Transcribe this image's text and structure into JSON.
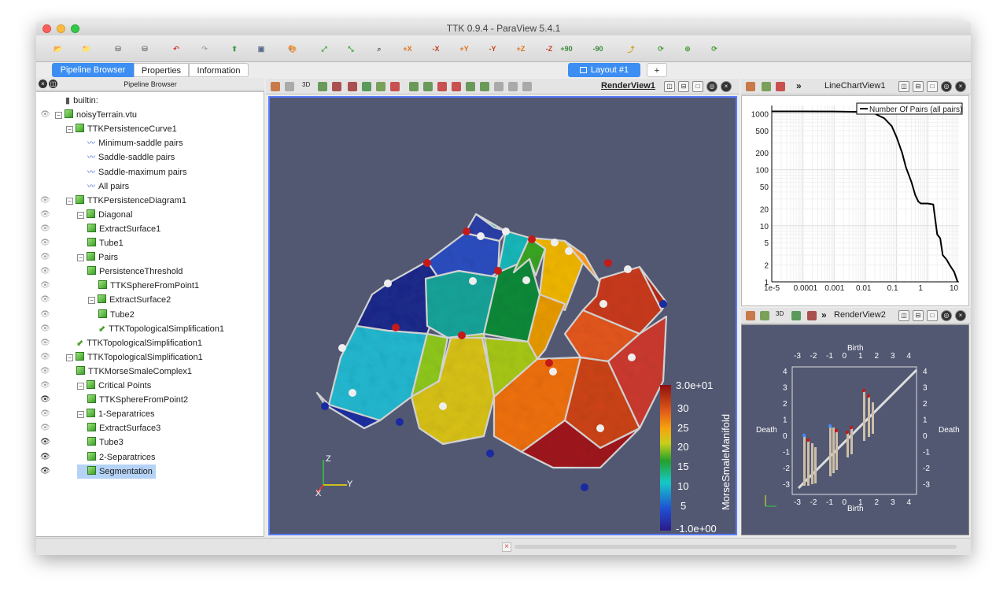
{
  "window": {
    "title": "TTK 0.9.4 - ParaView 5.4.1"
  },
  "toolbar": {
    "buttons": [
      {
        "name": "open-file",
        "label": "📂"
      },
      {
        "name": "load-state",
        "label": "📁"
      },
      {
        "name": "connect",
        "label": "⛁"
      },
      {
        "name": "disconnect",
        "label": "⛁"
      },
      {
        "name": "undo",
        "label": "↶"
      },
      {
        "name": "redo",
        "label": "↷"
      },
      {
        "name": "save-screenshot",
        "label": "⬆"
      },
      {
        "name": "save-animation",
        "label": "▣"
      },
      {
        "name": "color-palette",
        "label": "🎨"
      },
      {
        "name": "reset-camera",
        "label": "⤢"
      },
      {
        "name": "zoom-data",
        "label": "⤡"
      },
      {
        "name": "zoom-box",
        "label": "⌕"
      },
      {
        "name": "view-plus-x",
        "label": "+X"
      },
      {
        "name": "view-minus-x",
        "label": "-X"
      },
      {
        "name": "view-plus-y",
        "label": "+Y"
      },
      {
        "name": "view-minus-y",
        "label": "-Y"
      },
      {
        "name": "view-plus-z",
        "label": "+Z"
      },
      {
        "name": "view-minus-z",
        "label": "-Z"
      },
      {
        "name": "rotate-plus-90",
        "label": "+90"
      },
      {
        "name": "rotate-minus-90",
        "label": "-90"
      },
      {
        "name": "orientation-axes",
        "label": "⤴"
      },
      {
        "name": "center-axes",
        "label": "⟳"
      },
      {
        "name": "pick-center",
        "label": "⊚"
      },
      {
        "name": "reset-center",
        "label": "⟳"
      }
    ]
  },
  "left_tabs": [
    "Pipeline Browser",
    "Properties",
    "Information"
  ],
  "pipeline": {
    "header": "Pipeline Browser",
    "items": [
      {
        "label": "builtin:",
        "depth": 0,
        "eye": false,
        "icon": "server",
        "exp": false
      },
      {
        "label": "noisyTerrain.vtu",
        "depth": 0,
        "eye": true,
        "icon": "cube",
        "exp": true
      },
      {
        "label": "TTKPersistenceCurve1",
        "depth": 1,
        "eye": false,
        "icon": "cube",
        "exp": true
      },
      {
        "label": "Minimum-saddle pairs",
        "depth": 2,
        "eye": false,
        "icon": "chart",
        "exp": false
      },
      {
        "label": "Saddle-saddle pairs",
        "depth": 2,
        "eye": false,
        "icon": "chart",
        "exp": false
      },
      {
        "label": "Saddle-maximum pairs",
        "depth": 2,
        "eye": false,
        "icon": "chart",
        "exp": false
      },
      {
        "label": "All pairs",
        "depth": 2,
        "eye": false,
        "icon": "chart",
        "exp": false
      },
      {
        "label": "TTKPersistenceDiagram1",
        "depth": 1,
        "eye": true,
        "icon": "cube",
        "exp": true
      },
      {
        "label": "Diagonal",
        "depth": 2,
        "eye": true,
        "icon": "cube",
        "exp": true
      },
      {
        "label": "ExtractSurface1",
        "depth": 2,
        "eye": true,
        "icon": "cube",
        "exp": false
      },
      {
        "label": "Tube1",
        "depth": 2,
        "eye": true,
        "icon": "cube",
        "exp": false
      },
      {
        "label": "Pairs",
        "depth": 2,
        "eye": true,
        "icon": "cube",
        "exp": true
      },
      {
        "label": "PersistenceThreshold",
        "depth": 2,
        "eye": true,
        "icon": "cube",
        "exp": false
      },
      {
        "label": "TTKSphereFromPoint1",
        "depth": 3,
        "eye": true,
        "icon": "cube",
        "exp": false
      },
      {
        "label": "ExtractSurface2",
        "depth": 3,
        "eye": true,
        "icon": "cube",
        "exp": true
      },
      {
        "label": "Tube2",
        "depth": 3,
        "eye": true,
        "icon": "cube",
        "exp": false
      },
      {
        "label": "TTKTopologicalSimplification1",
        "depth": 3,
        "eye": true,
        "icon": "arrow",
        "exp": false
      },
      {
        "label": "TTKTopologicalSimplification1",
        "depth": 1,
        "eye": true,
        "icon": "arrow",
        "exp": false
      },
      {
        "label": "TTKTopologicalSimplification1",
        "depth": 1,
        "eye": true,
        "icon": "cube",
        "exp": true
      },
      {
        "label": "TTKMorseSmaleComplex1",
        "depth": 1,
        "eye": true,
        "icon": "cube",
        "exp": false
      },
      {
        "label": "Critical Points",
        "depth": 2,
        "eye": true,
        "icon": "cube",
        "exp": true
      },
      {
        "label": "TTKSphereFromPoint2",
        "depth": 2,
        "eye": true,
        "icon": "cube",
        "exp": false,
        "eyeOn": true
      },
      {
        "label": "1-Separatrices",
        "depth": 2,
        "eye": true,
        "icon": "cube",
        "exp": true
      },
      {
        "label": "ExtractSurface3",
        "depth": 2,
        "eye": true,
        "icon": "cube",
        "exp": false
      },
      {
        "label": "Tube3",
        "depth": 2,
        "eye": true,
        "icon": "cube",
        "exp": false,
        "eyeOn": true
      },
      {
        "label": "2-Separatrices",
        "depth": 2,
        "eye": true,
        "icon": "cube",
        "exp": false,
        "eyeOn": true
      },
      {
        "label": "Segmentation",
        "depth": 2,
        "eye": true,
        "icon": "cube",
        "exp": false,
        "eyeOn": true,
        "selected": true
      }
    ]
  },
  "layout_tab": {
    "label": "Layout #1",
    "add": "+"
  },
  "render_view_1": {
    "title": "RenderView1",
    "three_d_label": "3D",
    "scalar_bar": {
      "title": "MorseSmaleManifold",
      "top": "3.0e+01",
      "ticks": [
        "30",
        "25",
        "20",
        "15",
        "10",
        "5"
      ],
      "bottom": "-1.0e+00"
    },
    "axes": {
      "x": "X",
      "y": "Y",
      "z": "Z"
    }
  },
  "line_chart_view": {
    "title": "LineChartView1",
    "legend": "Number Of Pairs (all pairs)"
  },
  "render_view_2": {
    "title": "RenderView2",
    "three_d_label": "3D",
    "x_label_top": "Birth",
    "x_label_bottom": "Birth",
    "y_label_left": "Death",
    "y_label_right": "Death",
    "x_ticks": [
      "-3",
      "-2",
      "-1",
      "0",
      "1",
      "2",
      "3",
      "4"
    ],
    "y_ticks": [
      "4",
      "3",
      "2",
      "1",
      "0",
      "-1",
      "-2",
      "-3"
    ]
  },
  "chart_data": {
    "type": "line",
    "title": "",
    "xlabel": "",
    "ylabel": "",
    "x_scale": "log",
    "y_scale": "log",
    "xlim": [
      1e-05,
      10
    ],
    "ylim": [
      1,
      1400
    ],
    "x_ticks": [
      "1e-5",
      "0.0001",
      "0.001",
      "0.01",
      "0.1",
      "1",
      "10"
    ],
    "y_ticks": [
      "1000",
      "500",
      "200",
      "100",
      "50",
      "20",
      "10",
      "5",
      "2",
      "1"
    ],
    "series": [
      {
        "name": "Number Of Pairs (all pairs)",
        "x": [
          1e-05,
          0.001,
          0.01,
          0.02,
          0.04,
          0.07,
          0.1,
          0.15,
          0.2,
          0.3,
          0.4,
          0.5,
          0.6,
          0.7,
          1.0,
          1.5,
          2.0,
          2.5,
          3.0,
          4.0,
          5.0,
          7.0,
          9.0
        ],
        "values": [
          1100,
          1095,
          1070,
          1000,
          830,
          600,
          380,
          200,
          110,
          60,
          35,
          27,
          25,
          25,
          25,
          24,
          7,
          6,
          3,
          2.5,
          2,
          1.5,
          1
        ]
      }
    ]
  },
  "colors": {
    "selection": "#b5d3f7",
    "tab_active": "#3d8ef2",
    "view_bg": "#525872",
    "chart_line": "#000000"
  }
}
